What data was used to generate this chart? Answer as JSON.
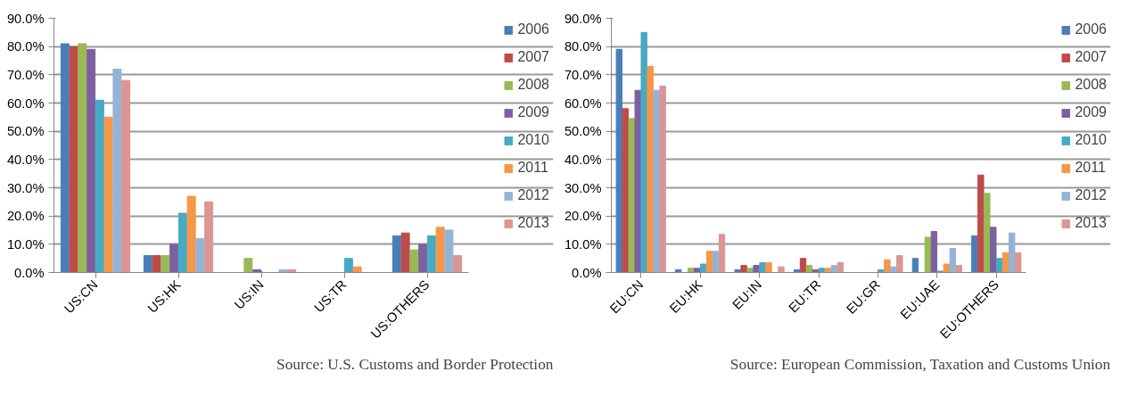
{
  "chart_data": [
    {
      "type": "bar",
      "categories": [
        "US:CN",
        "US:HK",
        "US:IN",
        "US:TR",
        "US:OTHERS"
      ],
      "ylim": [
        0,
        90
      ],
      "yticks": [
        {
          "value": 0,
          "label": "0.0%"
        },
        {
          "value": 10,
          "label": "10.0%"
        },
        {
          "value": 20,
          "label": "20.0%"
        },
        {
          "value": 30,
          "label": "30.0%"
        },
        {
          "value": 40,
          "label": "40.0%"
        },
        {
          "value": 50,
          "label": "50.0%"
        },
        {
          "value": 60,
          "label": "60.0%"
        },
        {
          "value": 70,
          "label": "70.0%"
        },
        {
          "value": 80,
          "label": "80.0%"
        },
        {
          "value": 90,
          "label": "90.0%"
        }
      ],
      "grid": "y",
      "legend": "right",
      "annotations": [
        "Source: U.S. Customs and Border Protection"
      ],
      "series": [
        {
          "name": "2006",
          "color": "#4a7ebb",
          "values": [
            81,
            6,
            0,
            0,
            13
          ]
        },
        {
          "name": "2007",
          "color": "#be4b48",
          "values": [
            80,
            6,
            0,
            0,
            14
          ]
        },
        {
          "name": "2008",
          "color": "#98b954",
          "values": [
            81,
            6,
            5,
            0,
            8
          ]
        },
        {
          "name": "2009",
          "color": "#7d60a0",
          "values": [
            79,
            10,
            1,
            0,
            10
          ]
        },
        {
          "name": "2010",
          "color": "#46aac5",
          "values": [
            61,
            21,
            0,
            5,
            13
          ]
        },
        {
          "name": "2011",
          "color": "#f79646",
          "values": [
            55,
            27,
            0,
            2,
            16
          ]
        },
        {
          "name": "2012",
          "color": "#95b3d7",
          "values": [
            72,
            12,
            1,
            0,
            15
          ]
        },
        {
          "name": "2013",
          "color": "#d99694",
          "values": [
            68,
            25,
            1,
            0,
            6
          ]
        }
      ]
    },
    {
      "type": "bar",
      "categories": [
        "EU:CN",
        "EU:HK",
        "EU:IN",
        "EU:TR",
        "EU:GR",
        "EU:UAE",
        "EU:OTHERS"
      ],
      "ylim": [
        0,
        90
      ],
      "yticks": [
        {
          "value": 0,
          "label": "0.0%"
        },
        {
          "value": 10,
          "label": "10.0%"
        },
        {
          "value": 20,
          "label": "20.0%"
        },
        {
          "value": 30,
          "label": "30.0%"
        },
        {
          "value": 40,
          "label": "40.0%"
        },
        {
          "value": 50,
          "label": "50.0%"
        },
        {
          "value": 60,
          "label": "60.0%"
        },
        {
          "value": 70,
          "label": "70.0%"
        },
        {
          "value": 80,
          "label": "80.0%"
        },
        {
          "value": 90,
          "label": "90.0%"
        }
      ],
      "grid": "y",
      "legend": "right",
      "annotations": [
        "Source: European Commission, Taxation and Customs Union"
      ],
      "series": [
        {
          "name": "2006",
          "color": "#4a7ebb",
          "values": [
            79,
            1,
            1,
            1,
            0,
            5,
            13
          ]
        },
        {
          "name": "2007",
          "color": "#be4b48",
          "values": [
            58,
            0,
            2.5,
            5,
            0,
            0,
            34.5
          ]
        },
        {
          "name": "2008",
          "color": "#98b954",
          "values": [
            54.5,
            1.5,
            1.5,
            2.5,
            0,
            12.5,
            28
          ]
        },
        {
          "name": "2009",
          "color": "#7d60a0",
          "values": [
            64.5,
            1.5,
            2.5,
            1,
            0,
            14.5,
            16
          ]
        },
        {
          "name": "2010",
          "color": "#46aac5",
          "values": [
            85,
            3,
            3.5,
            1.5,
            1,
            0.5,
            5
          ]
        },
        {
          "name": "2011",
          "color": "#f79646",
          "values": [
            73,
            7.5,
            3.5,
            1.5,
            4.5,
            3,
            7
          ]
        },
        {
          "name": "2012",
          "color": "#95b3d7",
          "values": [
            64.5,
            7.5,
            0,
            2.5,
            2,
            8.5,
            14
          ]
        },
        {
          "name": "2013",
          "color": "#d99694",
          "values": [
            66,
            13.5,
            2,
            3.5,
            6,
            2.5,
            7
          ]
        }
      ]
    }
  ]
}
